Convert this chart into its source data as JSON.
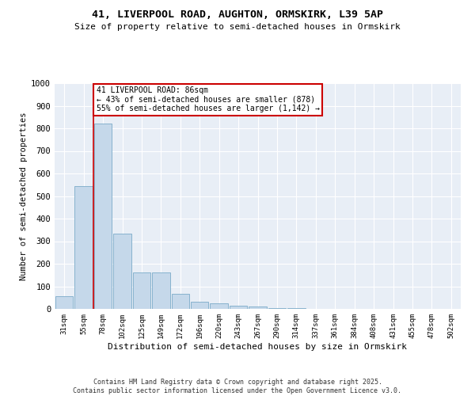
{
  "title_line1": "41, LIVERPOOL ROAD, AUGHTON, ORMSKIRK, L39 5AP",
  "title_line2": "Size of property relative to semi-detached houses in Ormskirk",
  "xlabel": "Distribution of semi-detached houses by size in Ormskirk",
  "ylabel": "Number of semi-detached properties",
  "categories": [
    "31sqm",
    "55sqm",
    "78sqm",
    "102sqm",
    "125sqm",
    "149sqm",
    "172sqm",
    "196sqm",
    "220sqm",
    "243sqm",
    "267sqm",
    "290sqm",
    "314sqm",
    "337sqm",
    "361sqm",
    "384sqm",
    "408sqm",
    "431sqm",
    "455sqm",
    "478sqm",
    "502sqm"
  ],
  "values": [
    55,
    545,
    820,
    335,
    160,
    160,
    65,
    30,
    25,
    15,
    10,
    5,
    3,
    1,
    1,
    0,
    1,
    0,
    1,
    0,
    0
  ],
  "bar_color": "#c5d8ea",
  "bar_edge_color": "#7aaac8",
  "vline_index": 2,
  "vline_color": "#cc0000",
  "annotation_text": "41 LIVERPOOL ROAD: 86sqm\n← 43% of semi-detached houses are smaller (878)\n55% of semi-detached houses are larger (1,142) →",
  "annotation_box_edgecolor": "#cc0000",
  "ylim_max": 1000,
  "yticks": [
    0,
    100,
    200,
    300,
    400,
    500,
    600,
    700,
    800,
    900,
    1000
  ],
  "plot_bg_color": "#e8eef6",
  "grid_color": "#ffffff",
  "footer_line1": "Contains HM Land Registry data © Crown copyright and database right 2025.",
  "footer_line2": "Contains public sector information licensed under the Open Government Licence v3.0."
}
